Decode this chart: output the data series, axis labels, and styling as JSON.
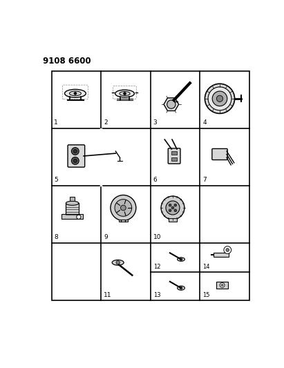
{
  "title_code": "9108 6600",
  "bg": "#f0f0f0",
  "white": "#ffffff",
  "black": "#000000",
  "fig_w": 4.11,
  "fig_h": 5.33,
  "dpi": 100,
  "GL": 0.07,
  "GR": 0.98,
  "GT": 0.93,
  "GB": 0.08,
  "ncols": 4,
  "nrows": 4
}
